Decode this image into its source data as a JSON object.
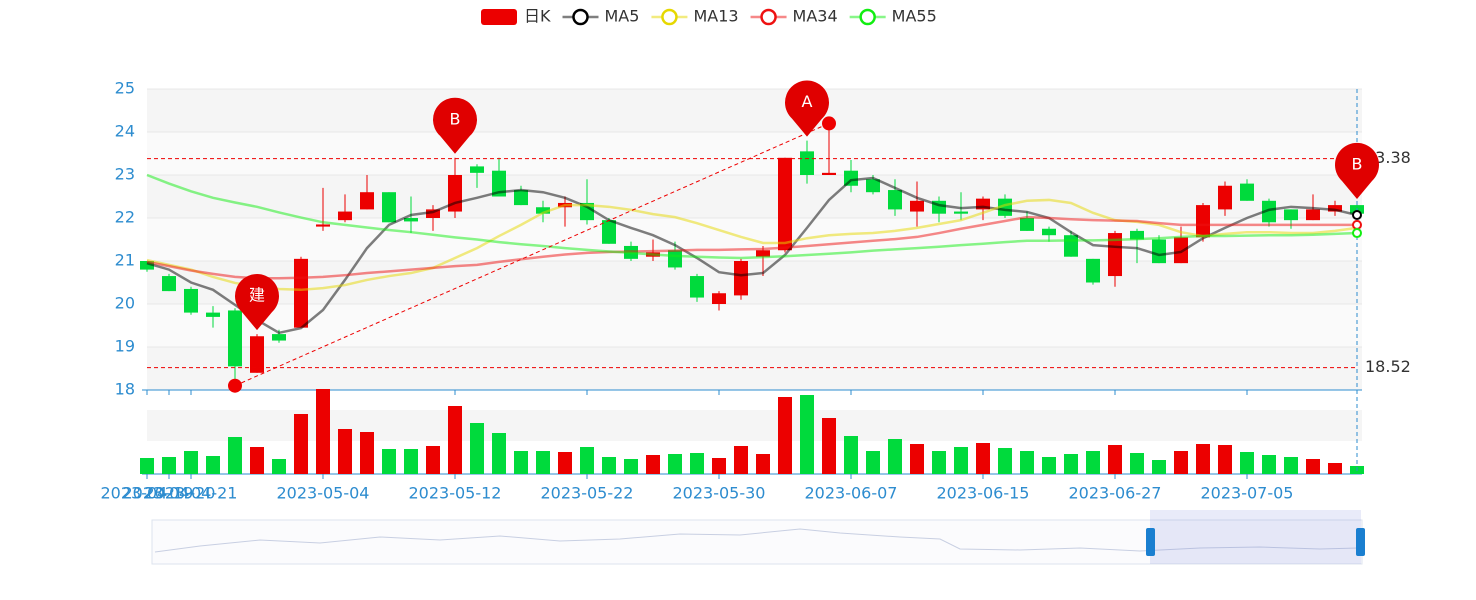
{
  "chart_data": {
    "type": "candlestick",
    "categories": [
      "2023-04-19",
      "2023-04-20",
      "2023-04-21",
      null,
      null,
      null,
      null,
      null,
      "2023-05-04",
      null,
      null,
      null,
      null,
      null,
      "2023-05-12",
      null,
      null,
      null,
      null,
      null,
      "2023-05-22",
      null,
      null,
      null,
      null,
      null,
      "2023-05-30",
      null,
      null,
      null,
      null,
      null,
      "2023-06-07",
      null,
      null,
      null,
      null,
      null,
      "2023-06-15",
      null,
      null,
      null,
      null,
      null,
      "2023-06-27",
      null,
      null,
      null,
      null,
      null,
      "2023-07-05",
      null,
      null,
      null,
      null,
      null
    ],
    "candles": {
      "name": "日K",
      "up_color": "#ec0000",
      "down_color": "#00da3c",
      "open": [
        21.0,
        20.65,
        20.35,
        19.8,
        19.85,
        18.4,
        19.3,
        19.45,
        21.8,
        21.95,
        22.2,
        22.6,
        22.0,
        22.0,
        22.15,
        23.2,
        23.1,
        22.65,
        22.25,
        22.25,
        22.35,
        21.95,
        21.35,
        21.1,
        21.25,
        20.65,
        20.0,
        20.2,
        21.1,
        21.25,
        23.55,
        23.0,
        23.1,
        22.9,
        22.65,
        22.15,
        22.4,
        22.15,
        22.2,
        22.45,
        22.0,
        21.75,
        21.6,
        21.05,
        20.65,
        21.7,
        21.5,
        20.95,
        21.55,
        22.2,
        22.8,
        22.4,
        22.2,
        21.95,
        22.15,
        22.3
      ],
      "close": [
        20.8,
        20.3,
        19.8,
        19.7,
        18.55,
        19.25,
        19.15,
        21.05,
        21.85,
        22.15,
        22.6,
        21.9,
        21.92,
        22.2,
        23.0,
        23.05,
        22.5,
        22.3,
        22.1,
        22.35,
        21.95,
        21.4,
        21.05,
        21.2,
        20.85,
        20.15,
        20.25,
        21.0,
        21.25,
        23.4,
        23.0,
        23.05,
        22.75,
        22.6,
        22.2,
        22.4,
        22.1,
        22.1,
        22.45,
        22.05,
        21.7,
        21.6,
        21.1,
        20.5,
        21.65,
        21.5,
        20.95,
        21.55,
        22.3,
        22.75,
        22.4,
        21.9,
        21.95,
        22.2,
        22.3,
        22.1
      ],
      "low": [
        20.75,
        20.3,
        19.75,
        19.45,
        18.1,
        18.4,
        19.1,
        19.45,
        21.7,
        21.9,
        22.2,
        21.9,
        21.65,
        21.7,
        22.0,
        22.7,
        22.5,
        22.3,
        21.9,
        21.8,
        21.85,
        21.4,
        21.0,
        21.0,
        20.8,
        20.05,
        19.85,
        20.1,
        20.65,
        21.2,
        22.8,
        23.0,
        22.6,
        22.55,
        22.05,
        21.8,
        21.9,
        21.95,
        21.95,
        22.0,
        21.7,
        21.45,
        21.1,
        20.45,
        20.4,
        20.95,
        20.95,
        20.95,
        21.45,
        22.05,
        22.4,
        21.8,
        21.75,
        21.95,
        22.05,
        22.0
      ],
      "high": [
        21.0,
        20.7,
        20.4,
        19.95,
        19.9,
        19.3,
        19.4,
        21.1,
        22.7,
        22.55,
        23.0,
        22.6,
        22.5,
        22.3,
        23.4,
        23.25,
        23.4,
        22.75,
        22.4,
        22.5,
        22.9,
        22.0,
        21.45,
        21.5,
        21.45,
        20.7,
        20.3,
        21.05,
        21.35,
        23.4,
        23.8,
        24.2,
        23.35,
        23.0,
        22.9,
        22.85,
        22.5,
        22.6,
        22.5,
        22.55,
        22.15,
        21.8,
        21.7,
        21.05,
        21.7,
        21.75,
        21.6,
        21.8,
        22.35,
        22.85,
        22.9,
        22.45,
        22.2,
        22.55,
        22.4,
        22.35
      ]
    },
    "volume": [
      16,
      17,
      23,
      18,
      37,
      27,
      15,
      60,
      85,
      45,
      42,
      25,
      25,
      28,
      68,
      51,
      41,
      23,
      23,
      22,
      27,
      17,
      15,
      19,
      20,
      21,
      16,
      28,
      20,
      77,
      79,
      56,
      38,
      23,
      35,
      30,
      23,
      27,
      31,
      26,
      23,
      17,
      20,
      23,
      29,
      21,
      14,
      23,
      30,
      29,
      22,
      19,
      17,
      15,
      11,
      8
    ],
    "series": [
      {
        "name": "MA5",
        "color": "#000000",
        "values": [
          20.95,
          20.8,
          20.5,
          20.33,
          19.98,
          19.63,
          19.33,
          19.44,
          19.86,
          20.56,
          21.3,
          21.84,
          22.07,
          22.14,
          22.35,
          22.47,
          22.6,
          22.65,
          22.6,
          22.47,
          22.26,
          21.95,
          21.77,
          21.6,
          21.37,
          21.07,
          20.74,
          20.67,
          20.72,
          21.14,
          21.77,
          22.42,
          22.88,
          22.93,
          22.7,
          22.47,
          22.3,
          22.23,
          22.26,
          22.19,
          22.14,
          22.0,
          21.67,
          21.37,
          21.33,
          21.3,
          21.14,
          21.21,
          21.53,
          21.77,
          22.0,
          22.19,
          22.26,
          22.23,
          22.19,
          22.07
        ]
      },
      {
        "name": "MA13",
        "color": "#e6d800",
        "values": [
          21.02,
          20.91,
          20.8,
          20.63,
          20.49,
          20.4,
          20.35,
          20.33,
          20.37,
          20.44,
          20.56,
          20.65,
          20.72,
          20.84,
          21.07,
          21.3,
          21.58,
          21.84,
          22.12,
          22.3,
          22.3,
          22.26,
          22.19,
          22.09,
          22.02,
          21.88,
          21.72,
          21.56,
          21.42,
          21.42,
          21.53,
          21.6,
          21.63,
          21.65,
          21.7,
          21.77,
          21.86,
          21.95,
          22.12,
          22.3,
          22.4,
          22.42,
          22.35,
          22.12,
          21.95,
          21.91,
          21.84,
          21.67,
          21.58,
          21.63,
          21.67,
          21.67,
          21.65,
          21.65,
          21.7,
          21.77
        ]
      },
      {
        "name": "MA34",
        "color": "#ee1111",
        "values": [
          20.98,
          20.88,
          20.78,
          20.7,
          20.63,
          20.6,
          20.6,
          20.61,
          20.63,
          20.67,
          20.72,
          20.76,
          20.8,
          20.84,
          20.88,
          20.91,
          20.98,
          21.04,
          21.1,
          21.15,
          21.19,
          21.21,
          21.22,
          21.23,
          21.24,
          21.26,
          21.26,
          21.27,
          21.28,
          21.31,
          21.35,
          21.39,
          21.43,
          21.47,
          21.51,
          21.56,
          21.65,
          21.75,
          21.84,
          21.93,
          22.02,
          22.0,
          21.97,
          21.95,
          21.94,
          21.93,
          21.88,
          21.84,
          21.84,
          21.84,
          21.84,
          21.84,
          21.84,
          21.84,
          21.84,
          21.84
        ]
      },
      {
        "name": "MA55",
        "color": "#11ee11",
        "values": [
          23.0,
          22.8,
          22.62,
          22.47,
          22.36,
          22.26,
          22.13,
          22.01,
          21.9,
          21.84,
          21.78,
          21.72,
          21.67,
          21.61,
          21.55,
          21.5,
          21.44,
          21.39,
          21.35,
          21.3,
          21.26,
          21.22,
          21.19,
          21.15,
          21.12,
          21.1,
          21.08,
          21.07,
          21.09,
          21.11,
          21.14,
          21.17,
          21.2,
          21.24,
          21.27,
          21.3,
          21.33,
          21.37,
          21.4,
          21.44,
          21.47,
          21.47,
          21.48,
          21.48,
          21.49,
          21.51,
          21.53,
          21.56,
          21.58,
          21.58,
          21.59,
          21.6,
          21.6,
          21.61,
          21.63,
          21.65
        ]
      }
    ],
    "ylim": [
      18,
      25
    ],
    "yticks": [
      18,
      19,
      20,
      21,
      22,
      23,
      24,
      25
    ],
    "mark_lines": [
      23.38,
      18.52
    ],
    "markers": [
      {
        "label": "建",
        "index": 5
      },
      {
        "label": "B",
        "index": 14
      },
      {
        "label": "A",
        "index": 30
      },
      {
        "label": "B",
        "index": 55
      }
    ]
  }
}
